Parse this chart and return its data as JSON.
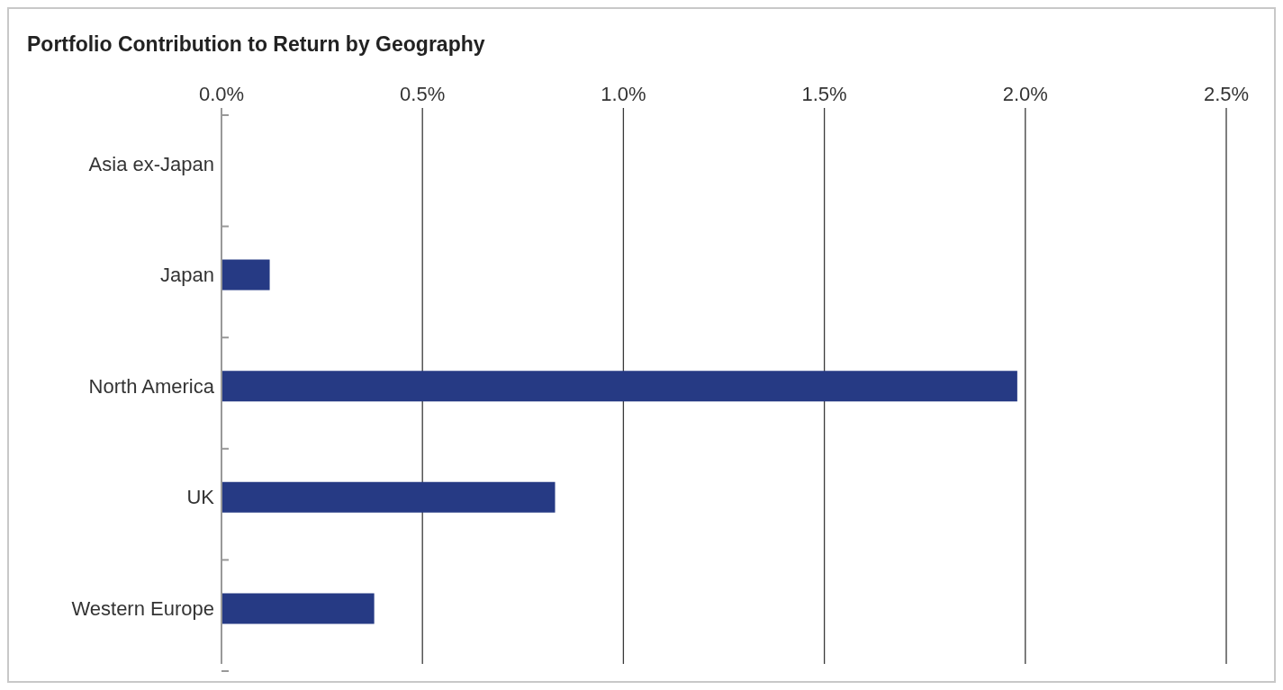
{
  "chart_data": {
    "type": "bar",
    "orientation": "horizontal",
    "title": "Portfolio Contribution to Return by Geography",
    "categories": [
      "Asia ex-Japan",
      "Japan",
      "North America",
      "UK",
      "Western Europe"
    ],
    "values": [
      0,
      0.12,
      1.98,
      0.83,
      0.38
    ],
    "color": "#263a84",
    "xlim": [
      0,
      2.5
    ],
    "xticks": [
      {
        "value": 0,
        "label": "0.0%"
      },
      {
        "value": 0.5,
        "label": "0.5%"
      },
      {
        "value": 1,
        "label": "1.0%"
      },
      {
        "value": 1.5,
        "label": "1.5%"
      },
      {
        "value": 2,
        "label": "2.0%"
      },
      {
        "value": 2.5,
        "label": "2.5%"
      }
    ],
    "grid": "x",
    "legend": false
  }
}
